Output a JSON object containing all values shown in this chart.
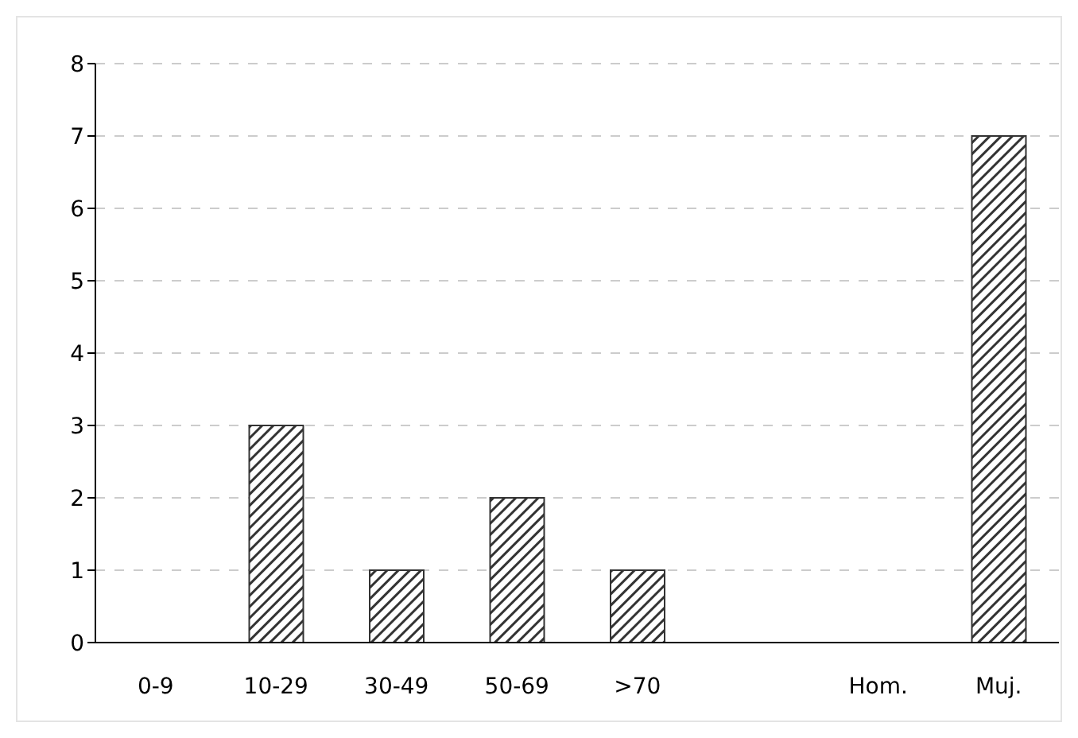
{
  "chart_data": {
    "type": "bar",
    "categories": [
      "0-9",
      "10-29",
      "30-49",
      "50-69",
      ">70",
      null,
      "Hom.",
      "Muj."
    ],
    "values": [
      0,
      3,
      1,
      2,
      1,
      null,
      0,
      7
    ],
    "color": "#333333",
    "ylim": [
      0,
      8
    ],
    "yticks": [
      0,
      1,
      2,
      3,
      4,
      5,
      6,
      7,
      8
    ],
    "grid": "y"
  }
}
